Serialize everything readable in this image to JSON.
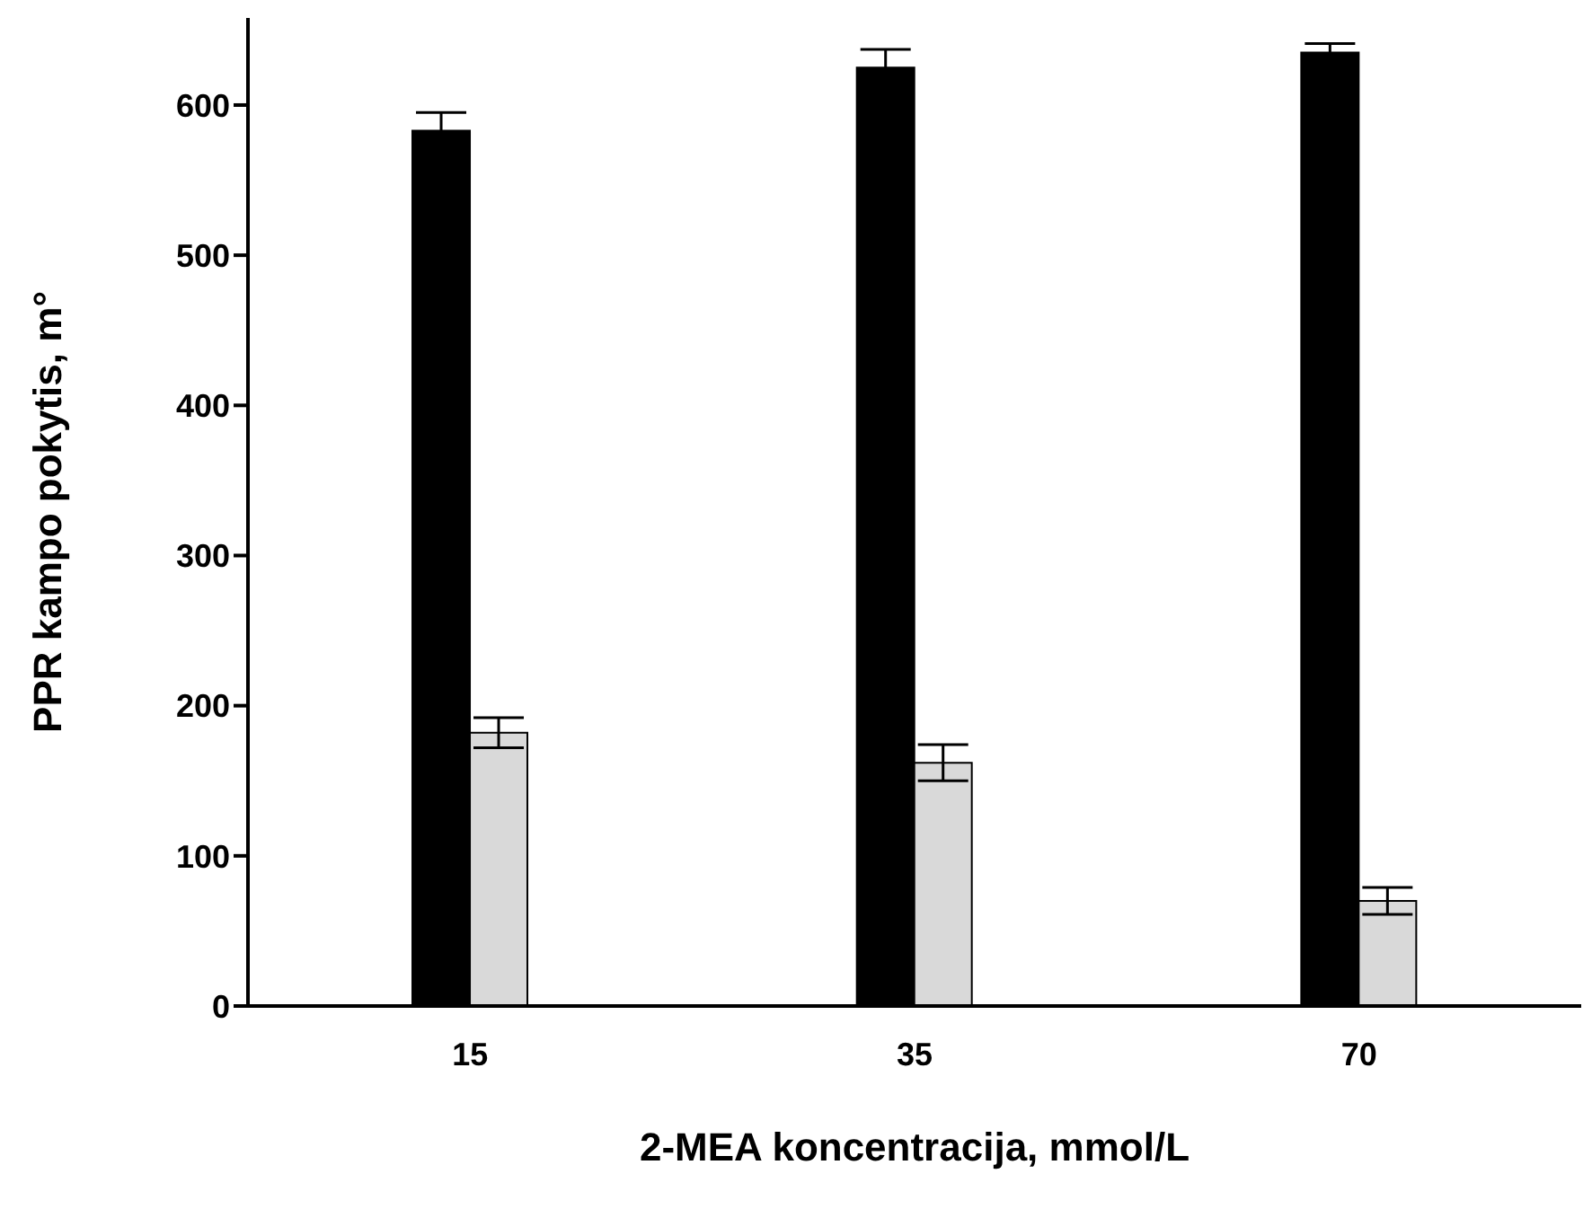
{
  "chart_data": {
    "type": "bar",
    "xlabel": "2-MEA koncentracija, mmol/L",
    "ylabel": "PPR kampo pokytis, m°",
    "categories": [
      "15",
      "35",
      "70"
    ],
    "ylim": [
      0,
      658
    ],
    "yticks": [
      0,
      100,
      200,
      300,
      400,
      500,
      600
    ],
    "grid": false,
    "legend": false,
    "series": [
      {
        "color": "#000000",
        "values": [
          583,
          625,
          635
        ],
        "errors": [
          12,
          12,
          6
        ]
      },
      {
        "color": "#d9d9d9",
        "values": [
          182,
          162,
          70
        ],
        "errors": [
          10,
          12,
          9
        ]
      }
    ]
  }
}
